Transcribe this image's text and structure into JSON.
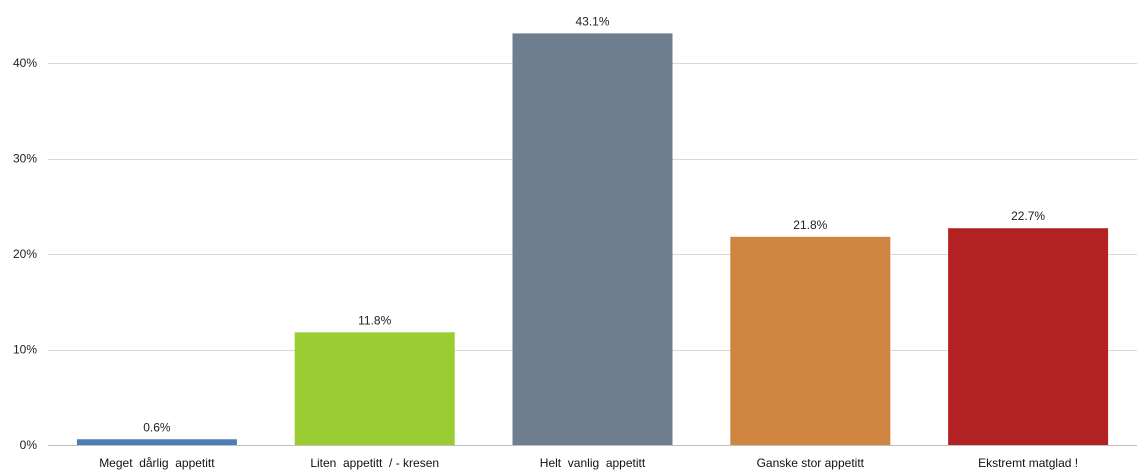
{
  "chart_data": {
    "type": "bar",
    "categories": [
      "Meget  dårlig  appetitt",
      "Liten  appetitt  / - kresen",
      "Helt  vanlig  appetitt",
      "Ganske stor appetitt",
      "Ekstremt matglad !"
    ],
    "values": [
      0.6,
      11.8,
      43.1,
      21.8,
      22.7
    ],
    "value_labels": [
      "0.6%",
      "11.8%",
      "43.1%",
      "21.8%",
      "22.7%"
    ],
    "colors": [
      "#4a7eb4",
      "#9acd32",
      "#6e7e8f",
      "#cd853f",
      "#b22222"
    ],
    "y_ticks": [
      0,
      10,
      20,
      30,
      40
    ],
    "y_tick_labels": [
      "0%",
      "10%",
      "20%",
      "30%",
      "40%"
    ],
    "ylim": [
      0,
      45
    ],
    "grid": true,
    "title": "",
    "xlabel": "",
    "ylabel": ""
  }
}
